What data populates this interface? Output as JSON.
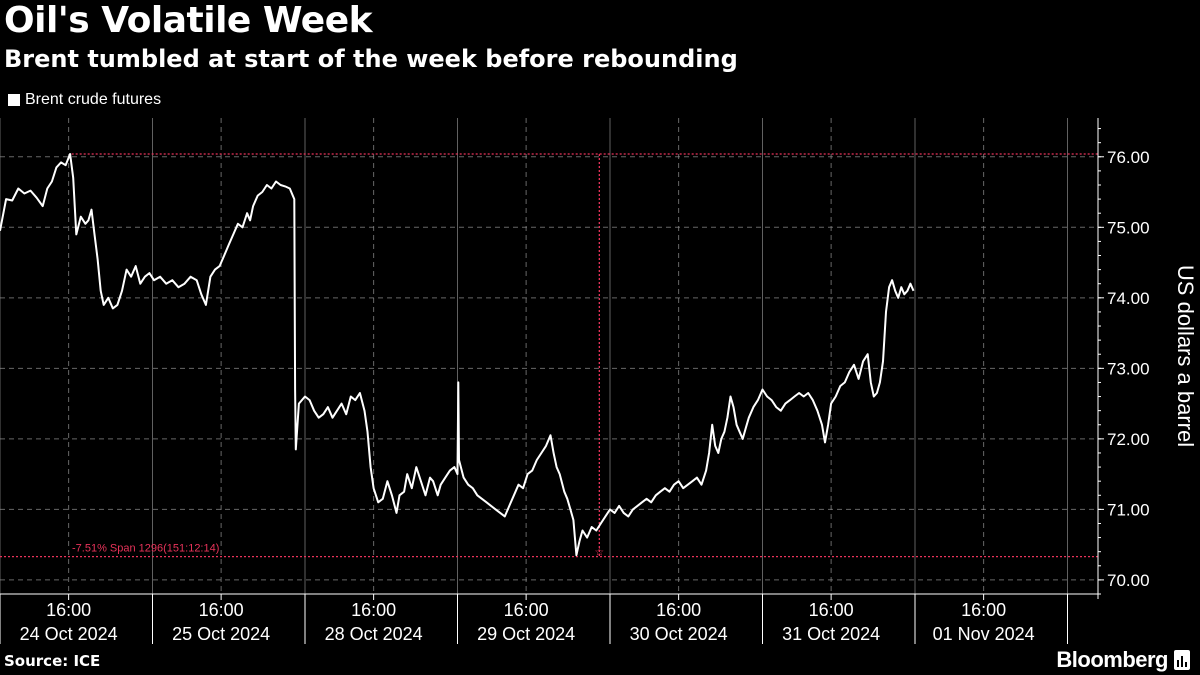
{
  "title": "Oil's Volatile Week",
  "subtitle": "Brent tumbled at start of the week before rebounding",
  "source": "Source: ICE",
  "brand": "Bloomberg",
  "colors": {
    "background": "#000000",
    "line": "#ffffff",
    "annotation": "#e8335a",
    "grid": "#8a8a8a"
  },
  "chart_data": {
    "type": "line",
    "ylabel": "US dollars a barrel",
    "ylim": [
      69.8,
      76.55
    ],
    "yticks": [
      70,
      71,
      72,
      73,
      74,
      75,
      76
    ],
    "ytick_labels": [
      "70.00",
      "71.00",
      "72.00",
      "73.00",
      "74.00",
      "75.00",
      "76.00"
    ],
    "xlim": [
      0,
      7.2
    ],
    "x_unit": "trading day index (0 = 24 Oct 2024 session start)",
    "days": [
      {
        "date": "24 Oct 2024",
        "time": "16:00",
        "pos": 0.45
      },
      {
        "date": "25 Oct 2024",
        "time": "16:00",
        "pos": 1.45
      },
      {
        "date": "28 Oct 2024",
        "time": "16:00",
        "pos": 2.45
      },
      {
        "date": "29 Oct 2024",
        "time": "16:00",
        "pos": 3.45
      },
      {
        "date": "30 Oct 2024",
        "time": "16:00",
        "pos": 4.45
      },
      {
        "date": "31 Oct 2024",
        "time": "16:00",
        "pos": 5.45
      },
      {
        "date": "01 Nov 2024",
        "time": "16:00",
        "pos": 6.45
      }
    ],
    "legend": [
      "Brent crude futures"
    ],
    "annotation": {
      "text": "-7.51% Span 1296(151:12:14)",
      "high": 76.04,
      "low": 70.33,
      "high_x": 0.47,
      "low_x": 3.93
    },
    "series": [
      {
        "name": "Brent crude futures",
        "points": [
          [
            0.0,
            74.95
          ],
          [
            0.04,
            75.4
          ],
          [
            0.08,
            75.38
          ],
          [
            0.12,
            75.55
          ],
          [
            0.16,
            75.48
          ],
          [
            0.2,
            75.52
          ],
          [
            0.24,
            75.42
          ],
          [
            0.28,
            75.3
          ],
          [
            0.31,
            75.55
          ],
          [
            0.34,
            75.65
          ],
          [
            0.37,
            75.85
          ],
          [
            0.4,
            75.92
          ],
          [
            0.43,
            75.88
          ],
          [
            0.46,
            76.04
          ],
          [
            0.48,
            75.7
          ],
          [
            0.5,
            74.9
          ],
          [
            0.53,
            75.15
          ],
          [
            0.56,
            75.05
          ],
          [
            0.58,
            75.1
          ],
          [
            0.6,
            75.25
          ],
          [
            0.62,
            74.9
          ],
          [
            0.64,
            74.55
          ],
          [
            0.66,
            74.1
          ],
          [
            0.68,
            73.9
          ],
          [
            0.71,
            74.0
          ],
          [
            0.74,
            73.85
          ],
          [
            0.77,
            73.9
          ],
          [
            0.8,
            74.1
          ],
          [
            0.83,
            74.4
          ],
          [
            0.86,
            74.3
          ],
          [
            0.89,
            74.45
          ],
          [
            0.92,
            74.2
          ],
          [
            0.95,
            74.3
          ],
          [
            0.98,
            74.35
          ],
          [
            1.01,
            74.25
          ],
          [
            1.05,
            74.3
          ],
          [
            1.09,
            74.2
          ],
          [
            1.13,
            74.25
          ],
          [
            1.17,
            74.15
          ],
          [
            1.21,
            74.2
          ],
          [
            1.25,
            74.3
          ],
          [
            1.29,
            74.25
          ],
          [
            1.32,
            74.05
          ],
          [
            1.35,
            73.9
          ],
          [
            1.38,
            74.3
          ],
          [
            1.41,
            74.4
          ],
          [
            1.44,
            74.45
          ],
          [
            1.47,
            74.6
          ],
          [
            1.5,
            74.75
          ],
          [
            1.53,
            74.9
          ],
          [
            1.56,
            75.05
          ],
          [
            1.59,
            75.0
          ],
          [
            1.62,
            75.2
          ],
          [
            1.64,
            75.1
          ],
          [
            1.66,
            75.3
          ],
          [
            1.69,
            75.45
          ],
          [
            1.72,
            75.5
          ],
          [
            1.75,
            75.6
          ],
          [
            1.78,
            75.55
          ],
          [
            1.81,
            75.65
          ],
          [
            1.84,
            75.6
          ],
          [
            1.87,
            75.58
          ],
          [
            1.9,
            75.55
          ],
          [
            1.92,
            75.45
          ],
          [
            1.93,
            75.4
          ],
          [
            1.935,
            72.7
          ],
          [
            1.94,
            71.85
          ],
          [
            1.96,
            72.5
          ],
          [
            1.98,
            72.55
          ],
          [
            2.0,
            72.6
          ],
          [
            2.03,
            72.55
          ],
          [
            2.06,
            72.4
          ],
          [
            2.09,
            72.3
          ],
          [
            2.12,
            72.35
          ],
          [
            2.15,
            72.45
          ],
          [
            2.18,
            72.3
          ],
          [
            2.21,
            72.4
          ],
          [
            2.24,
            72.5
          ],
          [
            2.27,
            72.35
          ],
          [
            2.3,
            72.6
          ],
          [
            2.33,
            72.55
          ],
          [
            2.36,
            72.65
          ],
          [
            2.39,
            72.4
          ],
          [
            2.41,
            72.1
          ],
          [
            2.43,
            71.6
          ],
          [
            2.45,
            71.3
          ],
          [
            2.48,
            71.1
          ],
          [
            2.51,
            71.15
          ],
          [
            2.54,
            71.4
          ],
          [
            2.57,
            71.2
          ],
          [
            2.6,
            70.95
          ],
          [
            2.62,
            71.2
          ],
          [
            2.65,
            71.25
          ],
          [
            2.67,
            71.5
          ],
          [
            2.7,
            71.3
          ],
          [
            2.73,
            71.6
          ],
          [
            2.76,
            71.4
          ],
          [
            2.79,
            71.2
          ],
          [
            2.82,
            71.45
          ],
          [
            2.84,
            71.4
          ],
          [
            2.87,
            71.2
          ],
          [
            2.89,
            71.35
          ],
          [
            2.92,
            71.45
          ],
          [
            2.95,
            71.55
          ],
          [
            2.98,
            71.6
          ],
          [
            3.0,
            71.5
          ],
          [
            3.005,
            72.8
          ],
          [
            3.01,
            71.7
          ],
          [
            3.04,
            71.45
          ],
          [
            3.07,
            71.35
          ],
          [
            3.1,
            71.3
          ],
          [
            3.13,
            71.2
          ],
          [
            3.16,
            71.15
          ],
          [
            3.19,
            71.1
          ],
          [
            3.22,
            71.05
          ],
          [
            3.25,
            71.0
          ],
          [
            3.28,
            70.95
          ],
          [
            3.31,
            70.9
          ],
          [
            3.34,
            71.05
          ],
          [
            3.37,
            71.2
          ],
          [
            3.4,
            71.35
          ],
          [
            3.43,
            71.3
          ],
          [
            3.46,
            71.5
          ],
          [
            3.49,
            71.55
          ],
          [
            3.52,
            71.7
          ],
          [
            3.55,
            71.8
          ],
          [
            3.58,
            71.9
          ],
          [
            3.61,
            72.05
          ],
          [
            3.63,
            71.8
          ],
          [
            3.65,
            71.6
          ],
          [
            3.67,
            71.5
          ],
          [
            3.7,
            71.25
          ],
          [
            3.72,
            71.15
          ],
          [
            3.74,
            71.0
          ],
          [
            3.76,
            70.85
          ],
          [
            3.78,
            70.35
          ],
          [
            3.8,
            70.55
          ],
          [
            3.82,
            70.7
          ],
          [
            3.85,
            70.6
          ],
          [
            3.88,
            70.75
          ],
          [
            3.91,
            70.7
          ],
          [
            3.94,
            70.8
          ],
          [
            3.97,
            70.9
          ],
          [
            4.0,
            71.0
          ],
          [
            4.03,
            70.95
          ],
          [
            4.06,
            71.05
          ],
          [
            4.09,
            70.95
          ],
          [
            4.12,
            70.9
          ],
          [
            4.15,
            71.0
          ],
          [
            4.18,
            71.05
          ],
          [
            4.21,
            71.1
          ],
          [
            4.24,
            71.15
          ],
          [
            4.27,
            71.1
          ],
          [
            4.3,
            71.2
          ],
          [
            4.33,
            71.25
          ],
          [
            4.36,
            71.3
          ],
          [
            4.39,
            71.25
          ],
          [
            4.42,
            71.35
          ],
          [
            4.45,
            71.4
          ],
          [
            4.48,
            71.3
          ],
          [
            4.51,
            71.35
          ],
          [
            4.54,
            71.4
          ],
          [
            4.57,
            71.45
          ],
          [
            4.6,
            71.35
          ],
          [
            4.63,
            71.55
          ],
          [
            4.65,
            71.8
          ],
          [
            4.67,
            72.2
          ],
          [
            4.69,
            71.9
          ],
          [
            4.71,
            71.8
          ],
          [
            4.73,
            72.0
          ],
          [
            4.75,
            72.1
          ],
          [
            4.77,
            72.3
          ],
          [
            4.79,
            72.6
          ],
          [
            4.81,
            72.45
          ],
          [
            4.83,
            72.2
          ],
          [
            4.85,
            72.1
          ],
          [
            4.87,
            72.0
          ],
          [
            4.89,
            72.15
          ],
          [
            4.91,
            72.3
          ],
          [
            4.94,
            72.45
          ],
          [
            4.97,
            72.55
          ],
          [
            5.0,
            72.7
          ],
          [
            5.03,
            72.6
          ],
          [
            5.06,
            72.55
          ],
          [
            5.09,
            72.45
          ],
          [
            5.12,
            72.4
          ],
          [
            5.15,
            72.5
          ],
          [
            5.18,
            72.55
          ],
          [
            5.21,
            72.6
          ],
          [
            5.24,
            72.65
          ],
          [
            5.27,
            72.6
          ],
          [
            5.3,
            72.65
          ],
          [
            5.33,
            72.55
          ],
          [
            5.36,
            72.4
          ],
          [
            5.39,
            72.2
          ],
          [
            5.41,
            71.95
          ],
          [
            5.43,
            72.2
          ],
          [
            5.45,
            72.5
          ],
          [
            5.48,
            72.6
          ],
          [
            5.51,
            72.75
          ],
          [
            5.54,
            72.8
          ],
          [
            5.57,
            72.95
          ],
          [
            5.6,
            73.05
          ],
          [
            5.63,
            72.85
          ],
          [
            5.66,
            73.1
          ],
          [
            5.69,
            73.2
          ],
          [
            5.71,
            72.8
          ],
          [
            5.73,
            72.6
          ],
          [
            5.75,
            72.65
          ],
          [
            5.77,
            72.8
          ],
          [
            5.79,
            73.1
          ],
          [
            5.81,
            73.8
          ],
          [
            5.83,
            74.15
          ],
          [
            5.85,
            74.25
          ],
          [
            5.87,
            74.1
          ],
          [
            5.89,
            74.0
          ],
          [
            5.91,
            74.15
          ],
          [
            5.93,
            74.05
          ],
          [
            5.95,
            74.1
          ],
          [
            5.97,
            74.2
          ],
          [
            5.99,
            74.1
          ]
        ]
      }
    ]
  }
}
